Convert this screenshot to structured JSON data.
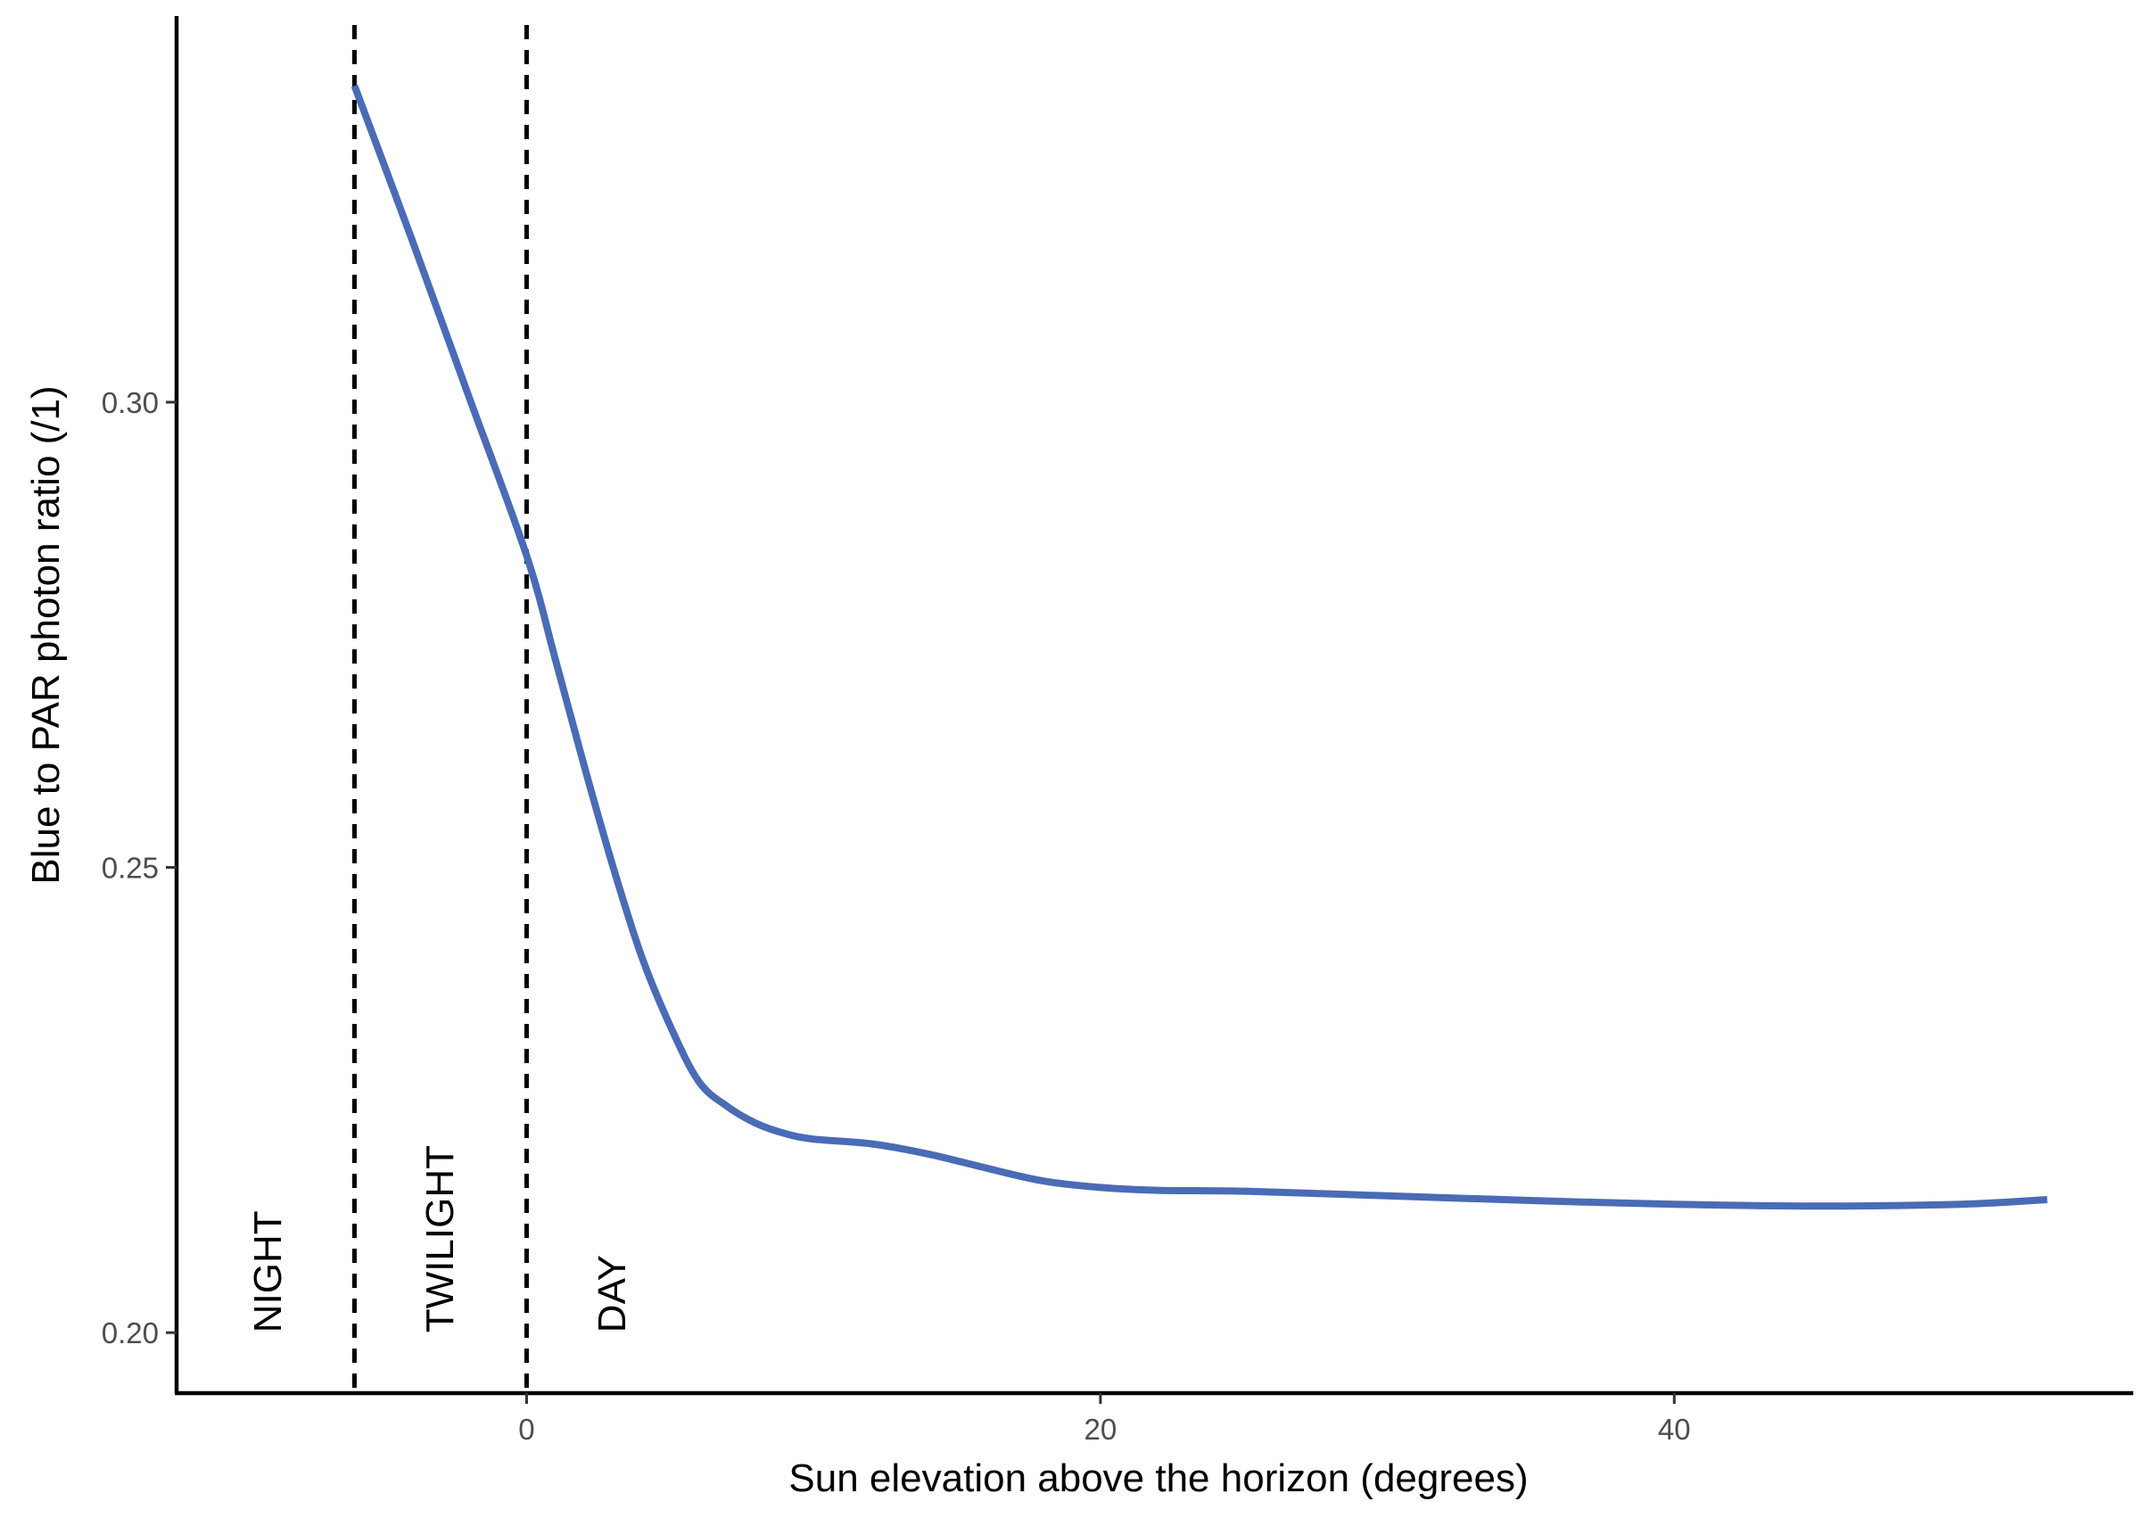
{
  "chart_data": {
    "type": "line",
    "title": "",
    "xlabel": "Sun elevation above the horizon (degrees)",
    "ylabel": "Blue to PAR photon ratio (/1)",
    "xlim": [
      -12.2,
      56.0
    ],
    "ylim": [
      0.1935,
      0.3415
    ],
    "x_ticks": [
      {
        "value": 0,
        "label": "0"
      },
      {
        "value": 20,
        "label": "20"
      },
      {
        "value": 40,
        "label": "40"
      }
    ],
    "y_ticks": [
      {
        "value": 0.2,
        "label": "0.20"
      },
      {
        "value": 0.25,
        "label": "0.25"
      },
      {
        "value": 0.3,
        "label": "0.30"
      }
    ],
    "grid": false,
    "line_color": "#4a6bb5",
    "series": [
      {
        "x": [
          -6,
          -4,
          -2,
          0,
          1,
          2,
          3,
          4,
          5,
          6,
          7,
          8,
          9,
          10,
          12,
          14,
          16,
          18,
          20,
          22,
          25,
          30,
          35,
          40,
          45,
          50,
          53
        ],
        "y": [
          0.334,
          0.3175,
          0.3005,
          0.2835,
          0.2724,
          0.261,
          0.2502,
          0.2405,
          0.233,
          0.227,
          0.2243,
          0.2225,
          0.2214,
          0.2208,
          0.2203,
          0.2192,
          0.2177,
          0.2163,
          0.2156,
          0.2153,
          0.2152,
          0.2147,
          0.2142,
          0.2138,
          0.2136,
          0.2138,
          0.2143
        ]
      }
    ],
    "reference_lines": [
      {
        "x": -6,
        "style": "dashed",
        "color": "#000000"
      },
      {
        "x": 0,
        "style": "dashed",
        "color": "#000000"
      }
    ],
    "annotations": [
      {
        "text": "NIGHT",
        "x": -9,
        "y": 0.2
      },
      {
        "text": "TWILIGHT",
        "x": -3,
        "y": 0.2
      },
      {
        "text": "DAY",
        "x": 3,
        "y": 0.2
      }
    ]
  }
}
